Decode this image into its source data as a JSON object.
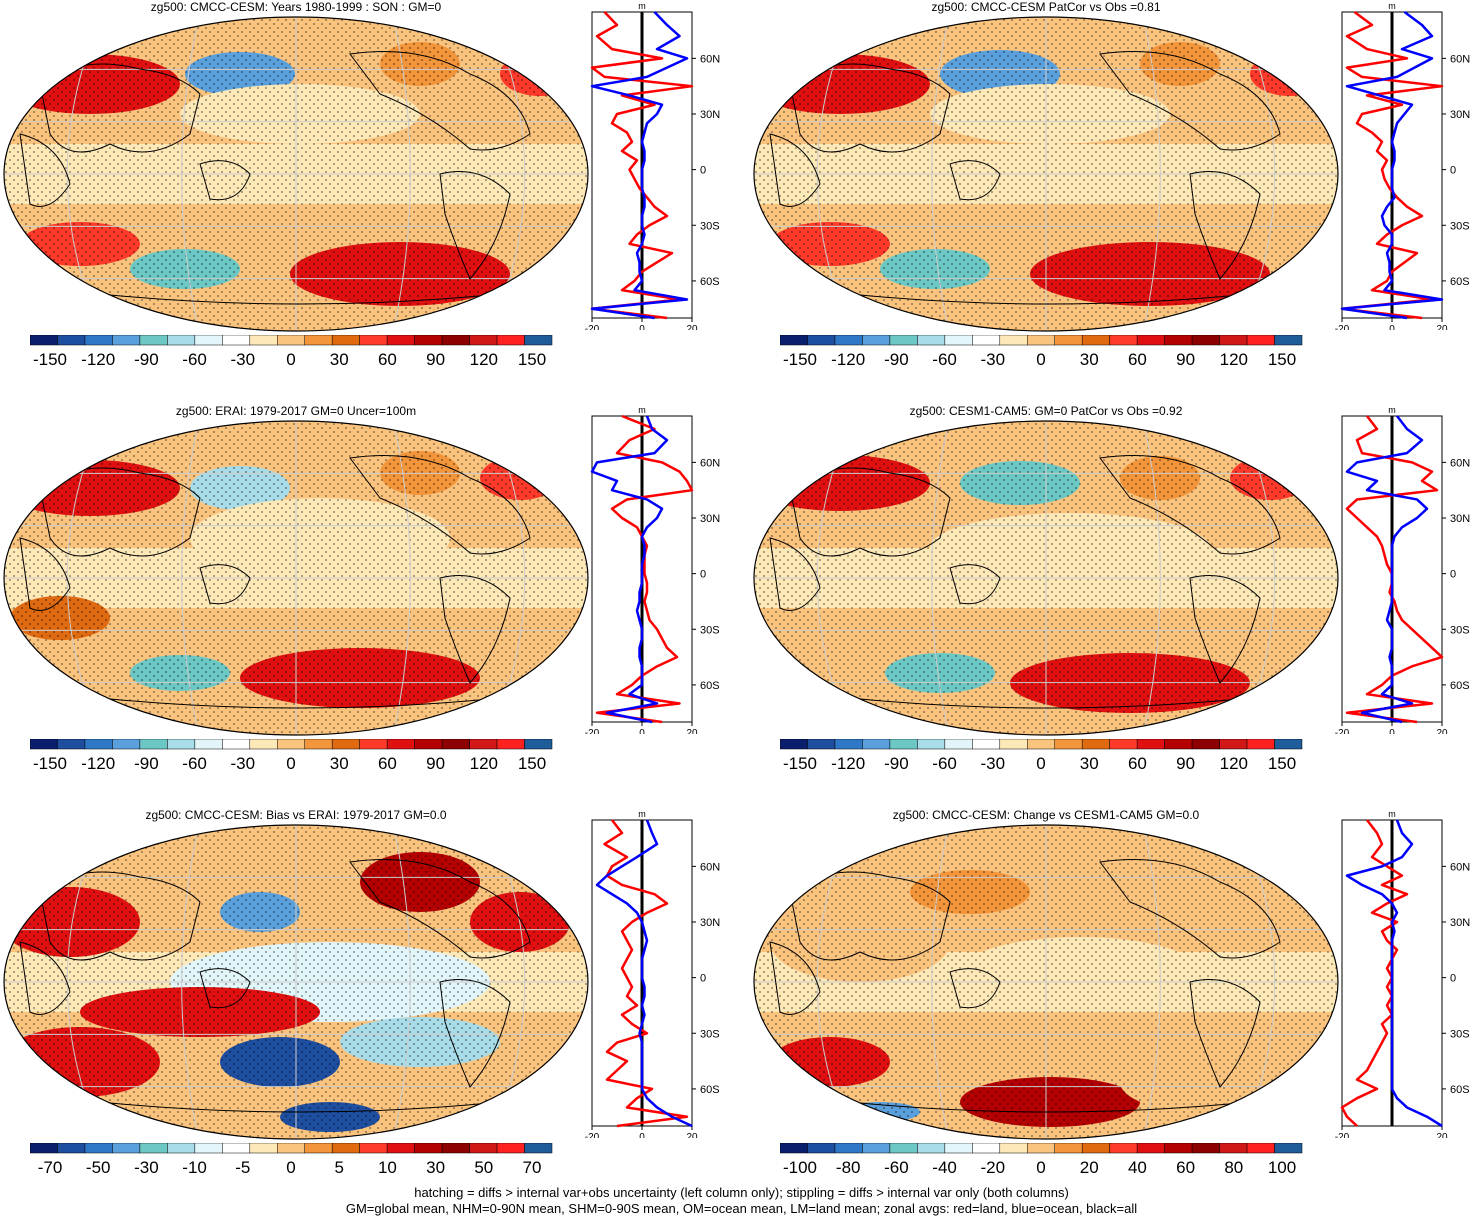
{
  "footer": {
    "line1": "hatching = diffs > internal var+obs uncertainty (left column only); stippling = diffs > internal var only (both columns)",
    "line2": "GM=global mean, NHM=0-90N mean, SHM=0-90S mean, OM=ocean mean, LM=land mean; zonal avgs: red=land, blue=ocean, black=all"
  },
  "colors": {
    "land": "#ff0000",
    "ocean": "#0000ff",
    "all": "#000000",
    "palette": [
      "#0a1e6e",
      "#1e4ea0",
      "#2f78c8",
      "#5aa0dc",
      "#6cc8c4",
      "#a8dce8",
      "#e2f6fa",
      "#ffffff",
      "#fde8b8",
      "#fbc47e",
      "#f3953a",
      "#e06a10",
      "#ff3a2a",
      "#e01010",
      "#b40000",
      "#8c0000",
      "#d01818",
      "#ff2020",
      "#1f5d9a"
    ]
  },
  "chart_data": [
    {
      "type": "heatmap",
      "title": "zg500: CMCC-CESM: Years 1980-1999 : SON : GM=0",
      "colorbar": {
        "tick_labels": [
          "-150",
          "-120",
          "-90",
          "-60",
          "-30",
          "0",
          "30",
          "60",
          "90",
          "120",
          "150"
        ]
      },
      "profile": {
        "xlabel": "m",
        "xlim": [
          -20,
          20
        ],
        "x_ticks": [
          "-20",
          "0",
          "20"
        ],
        "lat_ticks": [
          "60N",
          "30N",
          "0",
          "30S",
          "60S"
        ],
        "lat": [
          85,
          78,
          72,
          65,
          60,
          55,
          50,
          45,
          40,
          35,
          30,
          25,
          20,
          15,
          10,
          5,
          0,
          -5,
          -10,
          -15,
          -20,
          -25,
          -30,
          -35,
          -40,
          -45,
          -50,
          -55,
          -60,
          -65,
          -70,
          -75,
          -80
        ],
        "series": [
          {
            "name": "land",
            "values": [
              -15,
              -10,
              -18,
              -12,
              8,
              -20,
              -15,
              20,
              -8,
              5,
              -10,
              -12,
              -6,
              -4,
              -8,
              -2,
              -5,
              -3,
              -1,
              2,
              5,
              10,
              3,
              -2,
              -5,
              12,
              6,
              0,
              -3,
              -8,
              15,
              -22,
              10
            ]
          },
          {
            "name": "ocean",
            "values": [
              5,
              10,
              15,
              6,
              18,
              10,
              2,
              -20,
              -5,
              8,
              6,
              2,
              1,
              0,
              1,
              1,
              0,
              0,
              0,
              1,
              1,
              0,
              0,
              1,
              0,
              -2,
              -1,
              -1,
              0,
              -3,
              18,
              -20,
              5
            ]
          }
        ]
      }
    },
    {
      "type": "heatmap",
      "title": "zg500: CMCC-CESM PatCor vs Obs =0.81",
      "colorbar": {
        "tick_labels": [
          "-150",
          "-120",
          "-90",
          "-60",
          "-30",
          "0",
          "30",
          "60",
          "90",
          "120",
          "150"
        ]
      },
      "profile": {
        "xlabel": "m",
        "xlim": [
          -20,
          20
        ],
        "x_ticks": [
          "-20",
          "0",
          "20"
        ],
        "lat_ticks": [
          "60N",
          "30N",
          "0",
          "30S",
          "60S"
        ],
        "lat": [
          85,
          78,
          72,
          65,
          60,
          55,
          50,
          45,
          40,
          35,
          30,
          25,
          20,
          15,
          10,
          5,
          0,
          -5,
          -10,
          -15,
          -20,
          -25,
          -30,
          -35,
          -40,
          -45,
          -50,
          -55,
          -60,
          -65,
          -70,
          -75,
          -80
        ],
        "series": [
          {
            "name": "land",
            "values": [
              -15,
              -8,
              -18,
              -10,
              6,
              -18,
              -12,
              20,
              -10,
              4,
              -12,
              -14,
              -8,
              -4,
              -6,
              -2,
              -4,
              -3,
              -1,
              2,
              6,
              12,
              4,
              -2,
              -6,
              10,
              5,
              0,
              -2,
              -8,
              16,
              -22,
              12
            ]
          },
          {
            "name": "ocean",
            "values": [
              5,
              12,
              16,
              4,
              16,
              9,
              2,
              -18,
              -5,
              8,
              5,
              2,
              1,
              0,
              1,
              1,
              0,
              0,
              0,
              1,
              -2,
              -4,
              -3,
              0,
              0,
              -2,
              -1,
              -1,
              0,
              -3,
              20,
              -20,
              6
            ]
          }
        ]
      }
    },
    {
      "type": "heatmap",
      "title": "zg500: ERAI: 1979-2017 GM=0 Uncer=100m",
      "colorbar": {
        "tick_labels": [
          "-150",
          "-120",
          "-90",
          "-60",
          "-30",
          "0",
          "30",
          "60",
          "90",
          "120",
          "150"
        ]
      },
      "profile": {
        "xlabel": "m",
        "xlim": [
          -20,
          20
        ],
        "x_ticks": [
          "-20",
          "0",
          "20"
        ],
        "lat_ticks": [
          "60N",
          "30N",
          "0",
          "30S",
          "60S"
        ],
        "lat": [
          85,
          78,
          72,
          65,
          60,
          55,
          50,
          45,
          40,
          35,
          30,
          25,
          20,
          15,
          10,
          5,
          0,
          -5,
          -10,
          -15,
          -20,
          -25,
          -30,
          -35,
          -40,
          -45,
          -50,
          -55,
          -60,
          -65,
          -70,
          -75,
          -80
        ],
        "series": [
          {
            "name": "land",
            "values": [
              -8,
              5,
              -5,
              -10,
              8,
              15,
              18,
              20,
              -6,
              -12,
              -8,
              -2,
              0,
              2,
              1,
              1,
              1,
              2,
              2,
              1,
              2,
              3,
              6,
              8,
              10,
              14,
              6,
              0,
              -4,
              -10,
              15,
              -18,
              8
            ]
          },
          {
            "name": "ocean",
            "values": [
              2,
              4,
              10,
              5,
              -18,
              -20,
              -10,
              -12,
              2,
              8,
              6,
              2,
              0,
              1,
              1,
              0,
              0,
              0,
              -1,
              -1,
              -2,
              -1,
              0,
              0,
              -1,
              -1,
              0,
              0,
              0,
              -5,
              6,
              -14,
              4
            ]
          }
        ]
      }
    },
    {
      "type": "heatmap",
      "title": "zg500: CESM1-CAM5: GM=0 PatCor vs Obs =0.92",
      "colorbar": {
        "tick_labels": [
          "-150",
          "-120",
          "-90",
          "-60",
          "-30",
          "0",
          "30",
          "60",
          "90",
          "120",
          "150"
        ]
      },
      "profile": {
        "xlabel": "m",
        "xlim": [
          -20,
          20
        ],
        "x_ticks": [
          "-20",
          "0",
          "20"
        ],
        "lat_ticks": [
          "60N",
          "30N",
          "0",
          "30S",
          "60S"
        ],
        "lat": [
          85,
          78,
          72,
          65,
          60,
          55,
          50,
          45,
          40,
          35,
          30,
          25,
          20,
          15,
          10,
          5,
          0,
          -5,
          -10,
          -15,
          -20,
          -25,
          -30,
          -35,
          -40,
          -45,
          -50,
          -55,
          -60,
          -65,
          -70,
          -75,
          -80
        ],
        "series": [
          {
            "name": "land",
            "values": [
              -10,
              -6,
              -14,
              -12,
              8,
              16,
              12,
              18,
              -14,
              -18,
              -14,
              -10,
              -6,
              -4,
              -3,
              -2,
              0,
              0,
              -1,
              1,
              2,
              4,
              8,
              12,
              16,
              20,
              8,
              0,
              -4,
              -10,
              16,
              -18,
              10
            ]
          },
          {
            "name": "ocean",
            "values": [
              2,
              6,
              12,
              6,
              -14,
              -18,
              -6,
              -10,
              10,
              14,
              10,
              4,
              1,
              0,
              0,
              0,
              0,
              0,
              0,
              0,
              -1,
              -2,
              0,
              0,
              0,
              -1,
              0,
              0,
              0,
              -4,
              8,
              -12,
              4
            ]
          }
        ]
      }
    },
    {
      "type": "heatmap",
      "title": "zg500: CMCC-CESM: Bias vs ERAI: 1979-2017  GM=0.0",
      "colorbar": {
        "tick_labels": [
          "-70",
          "-50",
          "-30",
          "-10",
          "-5",
          "0",
          "5",
          "10",
          "30",
          "50",
          "70"
        ]
      },
      "profile": {
        "xlabel": "m",
        "xlim": [
          -20,
          20
        ],
        "x_ticks": [
          "-20",
          "0",
          "20"
        ],
        "lat_ticks": [
          "60N",
          "30N",
          "0",
          "30S",
          "60S"
        ],
        "lat": [
          85,
          78,
          72,
          65,
          60,
          55,
          50,
          45,
          40,
          35,
          30,
          25,
          20,
          15,
          10,
          5,
          0,
          -5,
          -10,
          -15,
          -20,
          -25,
          -30,
          -35,
          -40,
          -45,
          -50,
          -55,
          -60,
          -65,
          -70,
          -75,
          -80
        ],
        "series": [
          {
            "name": "land",
            "values": [
              -12,
              -8,
              -15,
              -6,
              -12,
              -14,
              -8,
              5,
              10,
              2,
              -4,
              -8,
              -6,
              -4,
              -6,
              -8,
              -6,
              -4,
              -6,
              -2,
              -8,
              -4,
              2,
              -10,
              -14,
              -6,
              -10,
              -14,
              4,
              -2,
              -6,
              18,
              -10
            ]
          },
          {
            "name": "ocean",
            "values": [
              2,
              4,
              6,
              -2,
              -8,
              -14,
              -18,
              -12,
              -6,
              -2,
              0,
              1,
              2,
              1,
              0,
              0,
              0,
              1,
              1,
              0,
              1,
              0,
              -1,
              0,
              0,
              0,
              0,
              0,
              0,
              2,
              6,
              12,
              20
            ]
          }
        ]
      }
    },
    {
      "type": "heatmap",
      "title": "zg500: CMCC-CESM: Change vs CESM1-CAM5 GM=0.0",
      "colorbar": {
        "tick_labels": [
          "-100",
          "-80",
          "-60",
          "-40",
          "-20",
          "0",
          "20",
          "40",
          "60",
          "80",
          "100"
        ]
      },
      "profile": {
        "xlabel": "m",
        "xlim": [
          -20,
          20
        ],
        "x_ticks": [
          "-20",
          "20"
        ],
        "lat_ticks": [
          "60N",
          "30N",
          "0",
          "30S",
          "60S"
        ],
        "lat": [
          85,
          78,
          72,
          65,
          60,
          55,
          50,
          45,
          40,
          35,
          30,
          25,
          20,
          15,
          10,
          5,
          0,
          -5,
          -10,
          -15,
          -20,
          -25,
          -30,
          -35,
          -40,
          -45,
          -50,
          -55,
          -60,
          -65,
          -70,
          -75,
          -80
        ],
        "series": [
          {
            "name": "land",
            "values": [
              -10,
              -6,
              -4,
              -8,
              -2,
              4,
              -4,
              6,
              -2,
              -8,
              2,
              -4,
              -2,
              2,
              0,
              -2,
              0,
              -2,
              0,
              -2,
              0,
              -4,
              -2,
              -4,
              -6,
              -8,
              -10,
              -14,
              -6,
              -14,
              -20,
              -18,
              -14
            ]
          },
          {
            "name": "ocean",
            "values": [
              2,
              4,
              8,
              4,
              -4,
              -18,
              -12,
              -4,
              0,
              2,
              0,
              1,
              0,
              0,
              0,
              0,
              0,
              0,
              0,
              0,
              0,
              0,
              0,
              0,
              0,
              0,
              0,
              0,
              0,
              2,
              6,
              14,
              20
            ]
          }
        ]
      }
    }
  ]
}
